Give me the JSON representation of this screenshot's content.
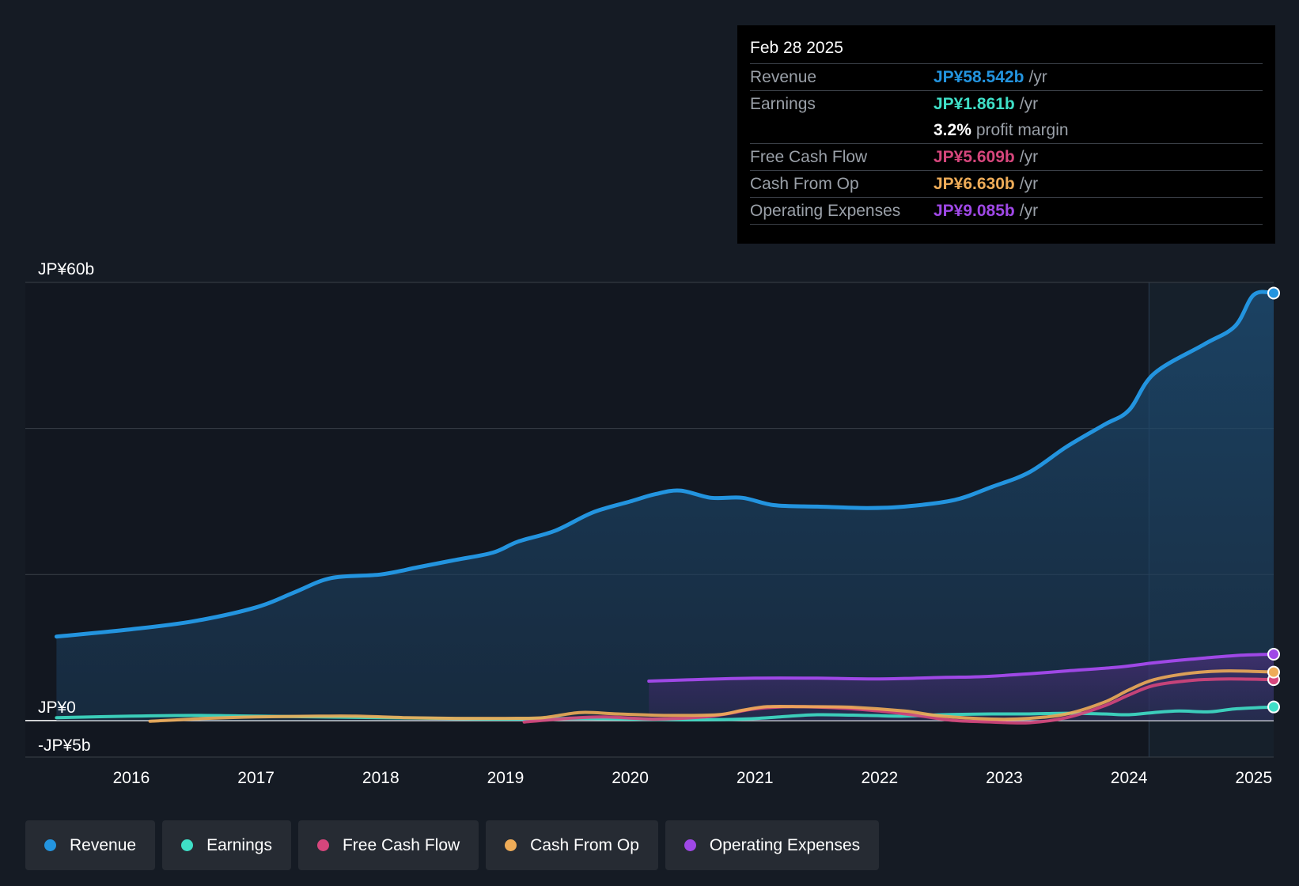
{
  "chart_data": {
    "type": "area",
    "title": "",
    "y_unit": "JP¥ billions",
    "ylim": [
      -5,
      60
    ],
    "ytick_labels": [
      {
        "value": 60,
        "label": "JP¥60b"
      },
      {
        "value": 0,
        "label": "JP¥0"
      },
      {
        "value": -5,
        "label": "-JP¥5b"
      }
    ],
    "xlim": [
      2015.15,
      2025.16
    ],
    "xtick_labels": [
      "2016",
      "2017",
      "2018",
      "2019",
      "2020",
      "2021",
      "2022",
      "2023",
      "2024",
      "2025"
    ],
    "highlight_start": 2024.16,
    "series": [
      {
        "name": "Revenue",
        "color": "#2394df",
        "fill": true,
        "end_marker": true,
        "points": [
          [
            2015.4,
            11.5
          ],
          [
            2016.0,
            12.5
          ],
          [
            2016.5,
            13.6
          ],
          [
            2017.0,
            15.5
          ],
          [
            2017.3,
            17.5
          ],
          [
            2017.6,
            19.5
          ],
          [
            2018.0,
            20.0
          ],
          [
            2018.3,
            21.0
          ],
          [
            2018.6,
            22.0
          ],
          [
            2018.9,
            23.0
          ],
          [
            2019.1,
            24.5
          ],
          [
            2019.4,
            26.0
          ],
          [
            2019.7,
            28.5
          ],
          [
            2020.0,
            30.0
          ],
          [
            2020.2,
            31.0
          ],
          [
            2020.4,
            31.5
          ],
          [
            2020.65,
            30.5
          ],
          [
            2020.9,
            30.5
          ],
          [
            2021.15,
            29.5
          ],
          [
            2021.5,
            29.3
          ],
          [
            2021.9,
            29.1
          ],
          [
            2022.2,
            29.3
          ],
          [
            2022.6,
            30.2
          ],
          [
            2022.9,
            32.0
          ],
          [
            2023.2,
            34.0
          ],
          [
            2023.5,
            37.5
          ],
          [
            2023.8,
            40.5
          ],
          [
            2024.0,
            42.5
          ],
          [
            2024.2,
            47.5
          ],
          [
            2024.6,
            51.5
          ],
          [
            2024.85,
            54.0
          ],
          [
            2025.0,
            58.3
          ],
          [
            2025.16,
            58.542
          ]
        ]
      },
      {
        "name": "Earnings",
        "color": "#3fdfc7",
        "fill": false,
        "end_marker": true,
        "points": [
          [
            2015.4,
            0.4
          ],
          [
            2016.0,
            0.6
          ],
          [
            2016.5,
            0.7
          ],
          [
            2017.0,
            0.6
          ],
          [
            2017.5,
            0.5
          ],
          [
            2018.0,
            0.4
          ],
          [
            2018.5,
            0.3
          ],
          [
            2019.0,
            0.2
          ],
          [
            2019.5,
            0.3
          ],
          [
            2020.0,
            0.2
          ],
          [
            2020.5,
            0.1
          ],
          [
            2020.9,
            0.2
          ],
          [
            2021.2,
            0.5
          ],
          [
            2021.5,
            0.8
          ],
          [
            2021.9,
            0.7
          ],
          [
            2022.2,
            0.6
          ],
          [
            2022.5,
            0.8
          ],
          [
            2022.9,
            0.9
          ],
          [
            2023.2,
            0.9
          ],
          [
            2023.5,
            1.0
          ],
          [
            2023.8,
            0.9
          ],
          [
            2024.0,
            0.8
          ],
          [
            2024.2,
            1.1
          ],
          [
            2024.4,
            1.3
          ],
          [
            2024.65,
            1.2
          ],
          [
            2024.85,
            1.6
          ],
          [
            2025.16,
            1.861
          ]
        ]
      },
      {
        "name": "Free Cash Flow",
        "color": "#d6467c",
        "fill": false,
        "end_marker": true,
        "points": [
          [
            2019.15,
            -0.2
          ],
          [
            2019.5,
            0.3
          ],
          [
            2019.8,
            0.5
          ],
          [
            2020.2,
            0.2
          ],
          [
            2020.6,
            0.5
          ],
          [
            2020.8,
            1.0
          ],
          [
            2021.0,
            1.6
          ],
          [
            2021.3,
            1.9
          ],
          [
            2021.7,
            1.7
          ],
          [
            2022.0,
            1.3
          ],
          [
            2022.3,
            0.7
          ],
          [
            2022.6,
            0.0
          ],
          [
            2022.9,
            -0.2
          ],
          [
            2023.2,
            -0.3
          ],
          [
            2023.5,
            0.4
          ],
          [
            2023.8,
            2.0
          ],
          [
            2024.0,
            3.5
          ],
          [
            2024.2,
            4.8
          ],
          [
            2024.5,
            5.5
          ],
          [
            2024.8,
            5.7
          ],
          [
            2025.16,
            5.609
          ]
        ]
      },
      {
        "name": "Cash From Op",
        "color": "#eeac58",
        "fill": false,
        "end_marker": true,
        "points": [
          [
            2016.15,
            -0.1
          ],
          [
            2016.6,
            0.3
          ],
          [
            2017.0,
            0.5
          ],
          [
            2017.5,
            0.6
          ],
          [
            2017.8,
            0.6
          ],
          [
            2018.2,
            0.4
          ],
          [
            2018.6,
            0.3
          ],
          [
            2019.0,
            0.3
          ],
          [
            2019.3,
            0.4
          ],
          [
            2019.6,
            1.1
          ],
          [
            2019.9,
            0.9
          ],
          [
            2020.3,
            0.7
          ],
          [
            2020.7,
            0.8
          ],
          [
            2020.9,
            1.4
          ],
          [
            2021.1,
            1.9
          ],
          [
            2021.4,
            1.9
          ],
          [
            2021.8,
            1.8
          ],
          [
            2022.2,
            1.3
          ],
          [
            2022.5,
            0.6
          ],
          [
            2022.9,
            0.2
          ],
          [
            2023.2,
            0.3
          ],
          [
            2023.5,
            0.9
          ],
          [
            2023.8,
            2.5
          ],
          [
            2024.0,
            4.2
          ],
          [
            2024.2,
            5.6
          ],
          [
            2024.5,
            6.5
          ],
          [
            2024.8,
            6.8
          ],
          [
            2025.16,
            6.63
          ]
        ]
      },
      {
        "name": "Operating Expenses",
        "color": "#9f48e6",
        "fill": true,
        "end_marker": true,
        "points": [
          [
            2020.15,
            5.4
          ],
          [
            2020.5,
            5.6
          ],
          [
            2021.0,
            5.8
          ],
          [
            2021.5,
            5.8
          ],
          [
            2022.0,
            5.7
          ],
          [
            2022.5,
            5.9
          ],
          [
            2022.8,
            6.0
          ],
          [
            2023.2,
            6.4
          ],
          [
            2023.5,
            6.8
          ],
          [
            2023.9,
            7.3
          ],
          [
            2024.2,
            7.9
          ],
          [
            2024.5,
            8.4
          ],
          [
            2024.85,
            8.9
          ],
          [
            2025.16,
            9.085
          ]
        ]
      }
    ]
  },
  "tooltip": {
    "date": "Feb 28 2025",
    "rows": [
      {
        "label": "Revenue",
        "value": "JP¥58.542b",
        "unit": "/yr",
        "color": "#2394df"
      },
      {
        "label": "Earnings",
        "value": "JP¥1.861b",
        "unit": "/yr",
        "color": "#3fdfc7"
      },
      {
        "label": "",
        "value": "3.2%",
        "unit": "profit margin",
        "color": "#ffffff"
      },
      {
        "label": "Free Cash Flow",
        "value": "JP¥5.609b",
        "unit": "/yr",
        "color": "#d6467c"
      },
      {
        "label": "Cash From Op",
        "value": "JP¥6.630b",
        "unit": "/yr",
        "color": "#eeac58"
      },
      {
        "label": "Operating Expenses",
        "value": "JP¥9.085b",
        "unit": "/yr",
        "color": "#9f48e6"
      }
    ]
  },
  "legend": [
    {
      "label": "Revenue",
      "color": "#2394df"
    },
    {
      "label": "Earnings",
      "color": "#3fdfc7"
    },
    {
      "label": "Free Cash Flow",
      "color": "#d6467c"
    },
    {
      "label": "Cash From Op",
      "color": "#eeac58"
    },
    {
      "label": "Operating Expenses",
      "color": "#9f48e6"
    }
  ]
}
